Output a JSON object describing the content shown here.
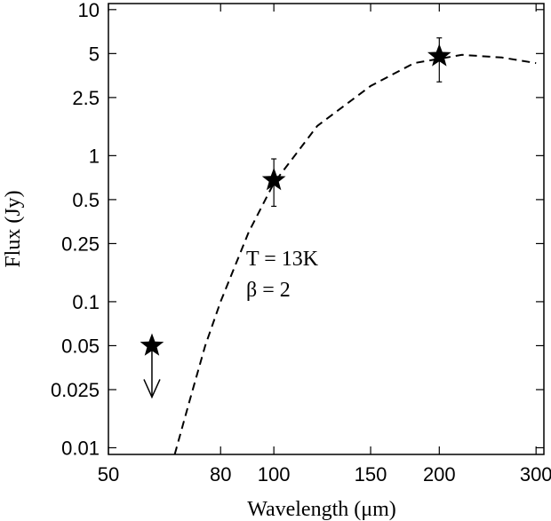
{
  "chart_data": {
    "type": "scatter",
    "xlabel": "Wavelength (μm)",
    "ylabel": "Flux (Jy)",
    "x_scale": "log",
    "y_scale": "log",
    "xlim": [
      50,
      310
    ],
    "ylim": [
      0.009,
      11
    ],
    "x_ticks": [
      {
        "value": 50,
        "label": "50"
      },
      {
        "value": 80,
        "label": "80"
      },
      {
        "value": 100,
        "label": "100"
      },
      {
        "value": 150,
        "label": "150"
      },
      {
        "value": 200,
        "label": "200"
      },
      {
        "value": 300,
        "label": "300"
      }
    ],
    "y_ticks": [
      {
        "value": 0.01,
        "label": "0.01"
      },
      {
        "value": 0.025,
        "label": "0.025"
      },
      {
        "value": 0.05,
        "label": "0.05"
      },
      {
        "value": 0.1,
        "label": "0.1"
      },
      {
        "value": 0.25,
        "label": "0.25"
      },
      {
        "value": 0.5,
        "label": "0.5"
      },
      {
        "value": 1,
        "label": "1"
      },
      {
        "value": 2.5,
        "label": "2.5"
      },
      {
        "value": 5,
        "label": "5"
      },
      {
        "value": 10,
        "label": "10"
      }
    ],
    "points": [
      {
        "x": 60,
        "y": 0.05,
        "upper_limit": true
      },
      {
        "x": 100,
        "y": 0.68,
        "yerr_low": 0.45,
        "yerr_high": 0.95
      },
      {
        "x": 200,
        "y": 4.8,
        "yerr_low": 3.2,
        "yerr_high": 6.4
      }
    ],
    "model_curve": {
      "style": "dashed",
      "points": [
        {
          "x": 66,
          "y": 0.009
        },
        {
          "x": 70,
          "y": 0.02
        },
        {
          "x": 75,
          "y": 0.05
        },
        {
          "x": 80,
          "y": 0.1
        },
        {
          "x": 90,
          "y": 0.3
        },
        {
          "x": 100,
          "y": 0.65
        },
        {
          "x": 120,
          "y": 1.6
        },
        {
          "x": 150,
          "y": 3.0
        },
        {
          "x": 180,
          "y": 4.3
        },
        {
          "x": 220,
          "y": 4.9
        },
        {
          "x": 260,
          "y": 4.7
        },
        {
          "x": 300,
          "y": 4.3
        }
      ]
    },
    "annotations": [
      "T = 13K",
      "β = 2"
    ],
    "grid": false,
    "legend": "none"
  }
}
